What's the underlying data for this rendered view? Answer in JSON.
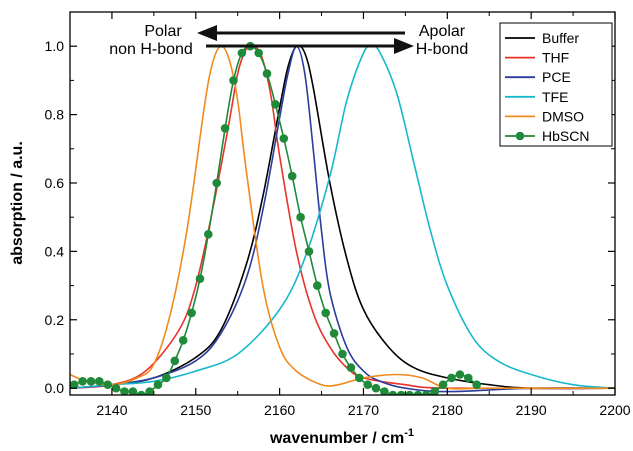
{
  "chart_data": {
    "type": "line",
    "xlabel": "wavenumber / cm",
    "xlabel_sup": "-1",
    "ylabel": "absorption / a.u.",
    "xlim": [
      2135,
      2200
    ],
    "ylim": [
      -0.02,
      1.1
    ],
    "xticks": [
      "2140",
      "2150",
      "2160",
      "2170",
      "2180",
      "2190",
      "2200"
    ],
    "yticks": [
      "0.0",
      "0.2",
      "0.4",
      "0.6",
      "0.8",
      "1.0"
    ],
    "xtick_values": [
      2140,
      2150,
      2160,
      2170,
      2180,
      2190,
      2200
    ],
    "ytick_values": [
      0,
      0.2,
      0.4,
      0.6,
      0.8,
      1.0
    ],
    "legend_position": "top-right",
    "annotations": {
      "left_line1": "Polar",
      "left_line2": "non H-bond",
      "right_line1": "Apolar",
      "right_line2": "H-bond"
    },
    "series": [
      {
        "name": "Buffer",
        "color": "#000000",
        "marker": "none",
        "x": [
          2135,
          2140,
          2145,
          2150,
          2153,
          2156,
          2158,
          2160,
          2161,
          2162,
          2163,
          2164,
          2166,
          2168,
          2170,
          2173,
          2176,
          2180,
          2185,
          2190,
          2200
        ],
        "y": [
          0.0,
          0.01,
          0.03,
          0.09,
          0.17,
          0.36,
          0.56,
          0.82,
          0.94,
          1.0,
          0.98,
          0.88,
          0.6,
          0.38,
          0.23,
          0.12,
          0.06,
          0.03,
          0.01,
          0.0,
          0.0
        ]
      },
      {
        "name": "THF",
        "color": "#e8322a",
        "marker": "none",
        "x": [
          2135,
          2140,
          2144,
          2148,
          2150,
          2152,
          2154,
          2155,
          2156,
          2157,
          2158,
          2159,
          2160,
          2162,
          2164,
          2166,
          2168,
          2170,
          2175,
          2180,
          2200
        ],
        "y": [
          0.0,
          0.01,
          0.05,
          0.17,
          0.3,
          0.52,
          0.78,
          0.92,
          0.99,
          1.0,
          0.96,
          0.85,
          0.68,
          0.4,
          0.22,
          0.12,
          0.06,
          0.03,
          0.01,
          0.0,
          0.0
        ]
      },
      {
        "name": "PCE",
        "color": "#2a3d9c",
        "marker": "none",
        "x": [
          2135,
          2140,
          2145,
          2150,
          2153,
          2156,
          2158,
          2160,
          2161,
          2162,
          2163,
          2164,
          2165,
          2166,
          2168,
          2170,
          2172,
          2175,
          2180,
          2190,
          2200
        ],
        "y": [
          0.0,
          0.01,
          0.03,
          0.08,
          0.16,
          0.32,
          0.52,
          0.79,
          0.92,
          1.0,
          0.92,
          0.7,
          0.46,
          0.28,
          0.12,
          0.05,
          0.02,
          0.0,
          -0.01,
          0.0,
          0.0
        ]
      },
      {
        "name": "TFE",
        "color": "#17b8cc",
        "marker": "none",
        "x": [
          2135,
          2140,
          2145,
          2150,
          2155,
          2160,
          2163,
          2166,
          2168,
          2170,
          2171,
          2172,
          2174,
          2176,
          2178,
          2180,
          2183,
          2186,
          2190,
          2195,
          2200
        ],
        "y": [
          0.0,
          0.01,
          0.02,
          0.05,
          0.1,
          0.23,
          0.38,
          0.62,
          0.84,
          0.98,
          1.0,
          0.98,
          0.86,
          0.66,
          0.46,
          0.3,
          0.15,
          0.08,
          0.04,
          0.01,
          0.0
        ]
      },
      {
        "name": "DMSO",
        "color": "#f08a1c",
        "marker": "none",
        "x": [
          2135,
          2137,
          2140,
          2143,
          2145,
          2147,
          2149,
          2151,
          2152,
          2153,
          2154,
          2155,
          2156,
          2158,
          2160,
          2162,
          2165,
          2167,
          2170,
          2174,
          2177,
          2180,
          2185,
          2200
        ],
        "y": [
          0.04,
          0.02,
          0.01,
          0.03,
          0.07,
          0.22,
          0.47,
          0.82,
          0.95,
          1.0,
          0.96,
          0.84,
          0.64,
          0.3,
          0.12,
          0.05,
          0.01,
          0.01,
          0.03,
          0.04,
          0.03,
          0.0,
          0.0,
          0.0
        ]
      },
      {
        "name": "HbSCN",
        "color": "#1e8a3a",
        "marker": "circle",
        "x": [
          2135.5,
          2136.5,
          2137.5,
          2138.5,
          2139.5,
          2140.5,
          2141.5,
          2142.5,
          2143.5,
          2144.5,
          2145.5,
          2146.5,
          2147.5,
          2148.5,
          2149.5,
          2150.5,
          2151.5,
          2152.5,
          2153.5,
          2154.5,
          2155.5,
          2156.5,
          2157.5,
          2158.5,
          2159.5,
          2160.5,
          2161.5,
          2162.5,
          2163.5,
          2164.5,
          2165.5,
          2166.5,
          2167.5,
          2168.5,
          2169.5,
          2170.5,
          2171.5,
          2172.5,
          2173.5,
          2174.5,
          2175.5,
          2176.5,
          2177.5,
          2178.5,
          2179.5,
          2180.5,
          2181.5,
          2182.5,
          2183.5
        ],
        "y": [
          0.01,
          0.02,
          0.02,
          0.02,
          0.01,
          0.0,
          -0.01,
          -0.01,
          -0.02,
          -0.01,
          0.01,
          0.03,
          0.08,
          0.14,
          0.22,
          0.32,
          0.45,
          0.6,
          0.76,
          0.9,
          0.98,
          1.0,
          0.98,
          0.92,
          0.83,
          0.73,
          0.62,
          0.5,
          0.4,
          0.3,
          0.22,
          0.16,
          0.1,
          0.06,
          0.03,
          0.01,
          0.0,
          -0.01,
          -0.02,
          -0.02,
          -0.02,
          -0.02,
          -0.02,
          -0.01,
          0.01,
          0.03,
          0.04,
          0.03,
          0.01
        ]
      }
    ]
  }
}
